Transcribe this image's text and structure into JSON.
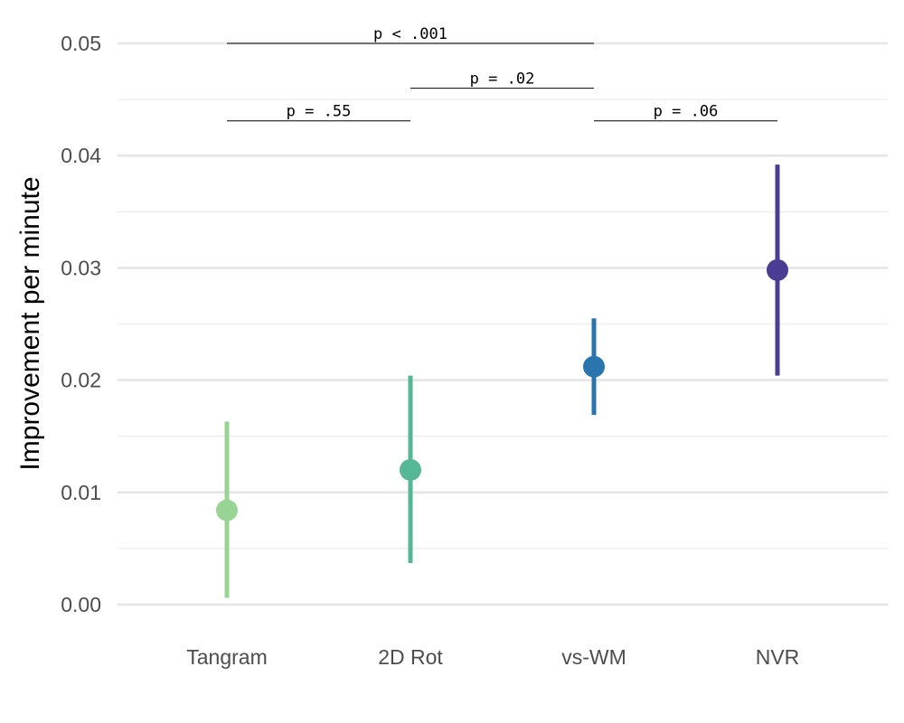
{
  "chart_data": {
    "type": "pointrange",
    "title": "",
    "xlabel": "",
    "ylabel": "Improvement per minute",
    "ylim": [
      -0.0025,
      0.0515
    ],
    "yticks": [
      "0.00",
      "0.01",
      "0.02",
      "0.03",
      "0.04",
      "0.05"
    ],
    "ytick_values": [
      0,
      0.01,
      0.02,
      0.03,
      0.04,
      0.05
    ],
    "grid": true,
    "legend": "none",
    "categories": [
      "Tangram",
      "2D Rot",
      "vs-WM",
      "NVR"
    ],
    "points": [
      {
        "category": "Tangram",
        "value": 0.0084,
        "lower": 0.0006,
        "upper": 0.0163,
        "color": "#98d594"
      },
      {
        "category": "2D Rot",
        "value": 0.012,
        "lower": 0.0037,
        "upper": 0.0204,
        "color": "#55b796"
      },
      {
        "category": "vs-WM",
        "value": 0.0212,
        "lower": 0.0169,
        "upper": 0.0255,
        "color": "#2b75ae"
      },
      {
        "category": "NVR",
        "value": 0.0298,
        "lower": 0.0204,
        "upper": 0.0392,
        "color": "#4b3d93"
      }
    ],
    "annotations": [
      {
        "from": "Tangram",
        "to": "vs-WM",
        "y": 0.05,
        "label": "p < .001"
      },
      {
        "from": "2D Rot",
        "to": "vs-WM",
        "y": 0.046,
        "label": "p = .02"
      },
      {
        "from": "Tangram",
        "to": "2D Rot",
        "y": 0.0431,
        "label": "p = .55"
      },
      {
        "from": "vs-WM",
        "to": "NVR",
        "y": 0.0431,
        "label": "p = .06"
      }
    ]
  }
}
